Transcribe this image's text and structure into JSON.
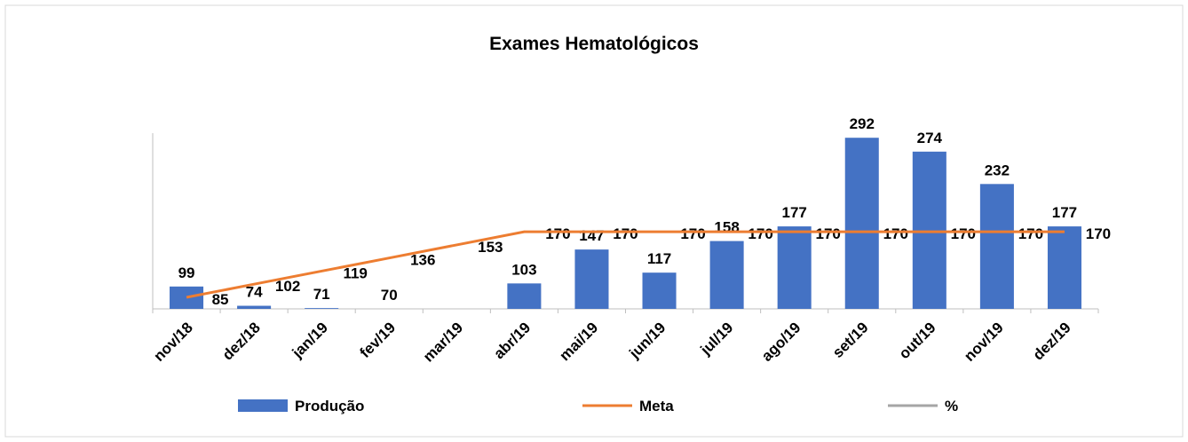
{
  "chart_data": {
    "type": "bar_line",
    "title": "Exames Hematológicos",
    "categories": [
      "nov/18",
      "dez/18",
      "jan/19",
      "fev/19",
      "mar/19",
      "abr/19",
      "mai/19",
      "jun/19",
      "jul/19",
      "ago/19",
      "set/19",
      "out/19",
      "nov/19",
      "dez/19"
    ],
    "series": [
      {
        "name": "Produção",
        "type": "bar",
        "color": "#4472c4",
        "values": [
          99,
          74,
          71,
          70,
          null,
          103,
          147,
          117,
          158,
          177,
          292,
          274,
          232,
          177
        ]
      },
      {
        "name": "Meta",
        "type": "line",
        "color": "#ed7d31",
        "values": [
          85,
          102,
          119,
          136,
          153,
          170,
          170,
          170,
          170,
          170,
          170,
          170,
          170,
          170
        ]
      },
      {
        "name": "%",
        "type": "line",
        "color": "#a5a5a5",
        "values": [
          null,
          null,
          null,
          null,
          null,
          null,
          null,
          null,
          null,
          null,
          null,
          null,
          null,
          null
        ]
      }
    ],
    "ylim": [
      70,
      298
    ],
    "grid": false
  }
}
